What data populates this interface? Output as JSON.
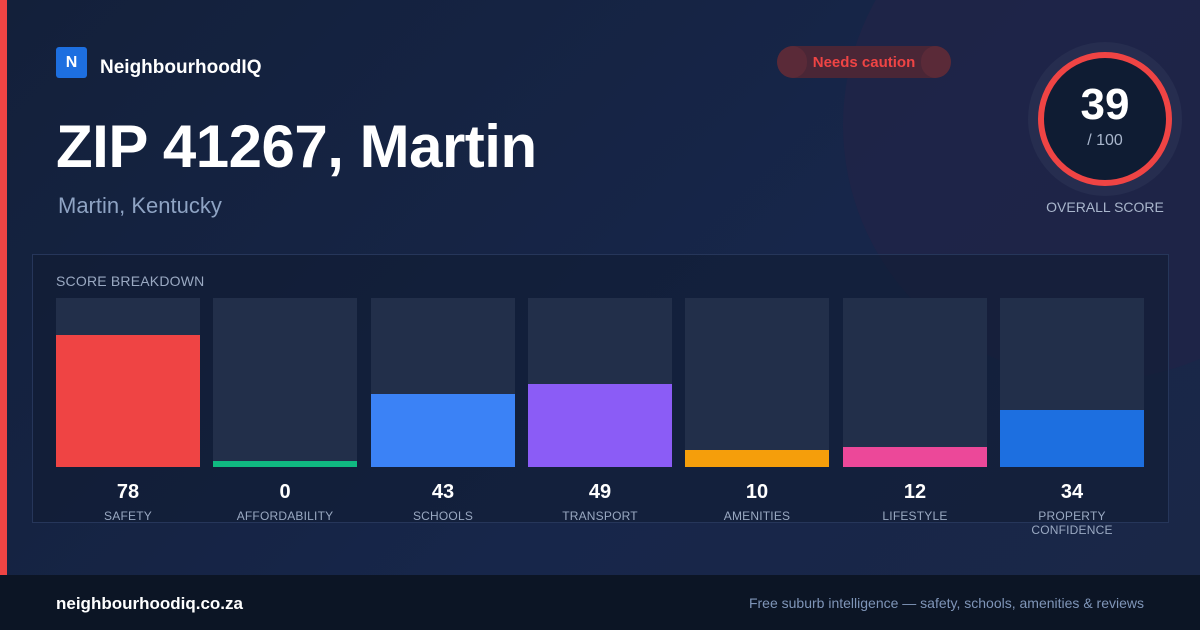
{
  "brand": {
    "logo_letter": "N",
    "name": "NeighbourhoodIQ"
  },
  "header": {
    "title": "ZIP 41267, Martin",
    "subtitle": "Martin, Kentucky",
    "status_badge": "Needs caution"
  },
  "overall_score": {
    "value": "39",
    "denominator": "/ 100",
    "caption": "OVERALL SCORE"
  },
  "breakdown": {
    "label": "SCORE BREAKDOWN",
    "chart_data": {
      "type": "bar",
      "categories": [
        "SAFETY",
        "AFFORDABILITY",
        "SCHOOLS",
        "TRANSPORT",
        "AMENITIES",
        "LIFESTYLE",
        "PROPERTY CONFIDENCE"
      ],
      "values": [
        78,
        0,
        43,
        49,
        10,
        12,
        34
      ],
      "ylim": [
        0,
        100
      ],
      "colors": [
        "#ef4444",
        "#10b981",
        "#3b82f6",
        "#8b5cf6",
        "#f59e0b",
        "#ec4899",
        "#1d6fe0"
      ]
    }
  },
  "footer": {
    "domain": "neighbourhoodiq.co.za",
    "tagline": "Free suburb intelligence — safety, schools, amenities & reviews"
  },
  "colors": {
    "accent_red": "#ef4444",
    "brand_blue": "#1d6fe0"
  }
}
